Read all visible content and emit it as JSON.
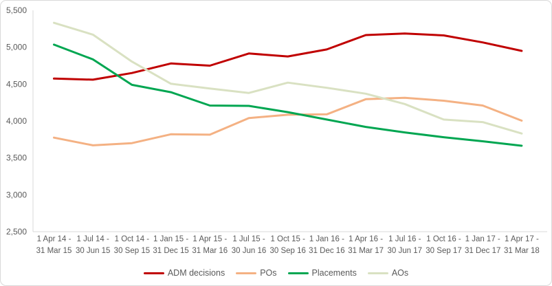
{
  "chart_data": {
    "type": "line",
    "title": "",
    "xlabel": "",
    "ylabel": "",
    "gridlines": false,
    "legend_position": "bottom",
    "axis_color": "#d9d9d9",
    "text_color": "#595959",
    "categories": [
      [
        "1 Apr 14 -",
        "31 Mar 15"
      ],
      [
        "1 Jul 14 -",
        "30 Jun 15"
      ],
      [
        "1 Oct 14 -",
        "30 Sep 15"
      ],
      [
        "1 Jan 15 -",
        "31 Dec 15"
      ],
      [
        "1 Apr 15 -",
        "31 Mar 16"
      ],
      [
        "1 Jul 15 -",
        "30 Jun 16"
      ],
      [
        "1 Oct 15 -",
        "30 Sep 16"
      ],
      [
        "1 Jan 16 -",
        "31 Dec 16"
      ],
      [
        "1 Apr 16 -",
        "31 Mar 17"
      ],
      [
        "1 Jul 16 -",
        "30 Jun 17"
      ],
      [
        "1 Oct 16 -",
        "30 Sep 17"
      ],
      [
        "1 Jan 17 -",
        "31 Dec 17"
      ],
      [
        "1 Apr 17 -",
        "31 Mar 18"
      ]
    ],
    "series": [
      {
        "name": "ADM decisions",
        "color": "#c00000",
        "values": [
          4575,
          4560,
          4650,
          4780,
          4750,
          4915,
          4875,
          4970,
          5165,
          5185,
          5160,
          5065,
          4950
        ]
      },
      {
        "name": "POs",
        "color": "#f4b183",
        "values": [
          3775,
          3670,
          3700,
          3820,
          3815,
          4040,
          4085,
          4090,
          4295,
          4315,
          4275,
          4210,
          4005
        ]
      },
      {
        "name": "Placements",
        "color": "#00a651",
        "values": [
          5035,
          4835,
          4490,
          4390,
          4210,
          4205,
          4120,
          4020,
          3920,
          3845,
          3780,
          3725,
          3665
        ]
      },
      {
        "name": "AOs",
        "color": "#d9e1c2",
        "values": [
          5330,
          5170,
          4805,
          4505,
          4440,
          4380,
          4520,
          4450,
          4370,
          4230,
          4020,
          3985,
          3830
        ]
      }
    ],
    "y_axis": {
      "min": 2500,
      "max": 5500,
      "tick_step": 500,
      "tick_labels": [
        "5,500",
        "5,000",
        "4,500",
        "4,000",
        "3,500",
        "3,000",
        "2,500"
      ]
    }
  }
}
